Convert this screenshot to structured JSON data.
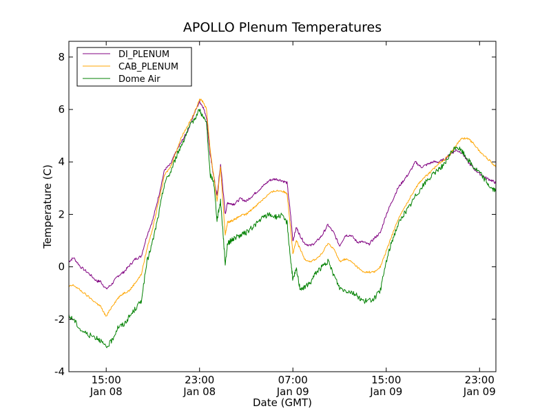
{
  "chart_data": {
    "type": "line",
    "title": "APOLLO Plenum Temperatures",
    "xlabel": "Date (GMT)",
    "ylabel": "Temperature (C)",
    "xunit": "hours since Jan 08 00:00 GMT",
    "xlim": [
      11.8,
      48.4
    ],
    "ylim": [
      -4,
      8.6
    ],
    "grid": false,
    "legend_position": "top-left",
    "yticks": [
      -4,
      -2,
      0,
      2,
      4,
      6,
      8
    ],
    "xticks": [
      {
        "value": 15,
        "time": "15:00",
        "date": "Jan 08"
      },
      {
        "value": 23,
        "time": "23:00",
        "date": "Jan 08"
      },
      {
        "value": 31,
        "time": "07:00",
        "date": "Jan 09"
      },
      {
        "value": 39,
        "time": "15:00",
        "date": "Jan 09"
      },
      {
        "value": 47,
        "time": "23:00",
        "date": "Jan 09"
      }
    ],
    "series": [
      {
        "name": "DI_PLENUM",
        "color": "#800080",
        "x": [
          11.8,
          12.2,
          12.8,
          13.5,
          14.2,
          14.5,
          15.0,
          15.5,
          16.0,
          16.5,
          17.0,
          17.5,
          18.0,
          18.5,
          19.0,
          19.5,
          20.0,
          20.5,
          21.0,
          21.5,
          22.0,
          22.5,
          23.0,
          23.3,
          23.6,
          23.9,
          24.2,
          24.5,
          24.8,
          25.0,
          25.2,
          25.4,
          25.7,
          26.0,
          26.5,
          27.0,
          27.5,
          28.0,
          28.5,
          29.0,
          29.5,
          30.0,
          30.5,
          30.8,
          31.0,
          31.3,
          31.6,
          32.0,
          32.5,
          33.0,
          33.5,
          34.0,
          34.5,
          35.0,
          35.5,
          36.0,
          36.5,
          37.0,
          37.5,
          38.0,
          38.5,
          39.0,
          39.5,
          40.0,
          40.5,
          41.0,
          41.5,
          42.0,
          42.5,
          43.0,
          43.5,
          44.0,
          44.5,
          45.0,
          45.5,
          46.0,
          46.5,
          47.0,
          47.5,
          48.0,
          48.4
        ],
        "y": [
          0.2,
          0.35,
          0.0,
          -0.25,
          -0.55,
          -0.55,
          -0.85,
          -0.65,
          -0.35,
          -0.2,
          0.05,
          0.3,
          0.4,
          1.2,
          1.8,
          2.7,
          3.7,
          3.9,
          4.4,
          4.8,
          5.2,
          5.8,
          6.3,
          6.1,
          5.7,
          4.3,
          3.5,
          2.7,
          3.9,
          3.0,
          2.0,
          2.45,
          2.4,
          2.4,
          2.6,
          2.5,
          2.7,
          2.9,
          3.1,
          3.3,
          3.35,
          3.3,
          3.2,
          2.0,
          1.0,
          1.5,
          1.2,
          0.9,
          0.8,
          0.95,
          1.2,
          1.6,
          1.3,
          0.8,
          1.2,
          1.2,
          0.95,
          0.95,
          0.85,
          1.1,
          1.3,
          2.0,
          2.5,
          3.0,
          3.3,
          3.6,
          4.0,
          3.8,
          3.9,
          4.0,
          4.0,
          4.1,
          4.3,
          4.45,
          4.35,
          4.0,
          3.75,
          3.55,
          3.4,
          3.3,
          3.2
        ]
      },
      {
        "name": "CAB_PLENUM",
        "color": "#ffa500",
        "x": [
          11.8,
          12.2,
          12.8,
          13.5,
          14.2,
          14.5,
          15.0,
          15.5,
          16.0,
          16.5,
          17.0,
          17.5,
          18.0,
          18.5,
          19.0,
          19.5,
          20.0,
          20.5,
          21.0,
          21.5,
          22.0,
          22.5,
          23.0,
          23.3,
          23.6,
          23.9,
          24.2,
          24.5,
          24.8,
          25.0,
          25.2,
          25.4,
          25.7,
          26.0,
          26.5,
          27.0,
          27.5,
          28.0,
          28.5,
          29.0,
          29.5,
          30.0,
          30.5,
          30.8,
          31.0,
          31.3,
          31.6,
          32.0,
          32.5,
          33.0,
          33.5,
          34.0,
          34.5,
          35.0,
          35.5,
          36.0,
          36.5,
          37.0,
          37.5,
          38.0,
          38.5,
          39.0,
          39.5,
          40.0,
          40.5,
          41.0,
          41.5,
          42.0,
          42.5,
          43.0,
          43.5,
          44.0,
          44.5,
          45.0,
          45.5,
          46.0,
          46.5,
          47.0,
          47.5,
          48.0,
          48.4
        ],
        "y": [
          -0.75,
          -0.7,
          -0.9,
          -1.15,
          -1.4,
          -1.5,
          -1.9,
          -1.5,
          -1.2,
          -1.0,
          -0.9,
          -0.6,
          -0.3,
          0.7,
          1.5,
          2.5,
          3.5,
          3.8,
          4.4,
          5.0,
          5.4,
          5.8,
          6.4,
          6.3,
          6.0,
          4.5,
          3.5,
          2.5,
          3.8,
          2.5,
          1.2,
          1.7,
          1.75,
          1.8,
          1.95,
          2.0,
          2.2,
          2.4,
          2.6,
          2.8,
          2.9,
          2.9,
          2.8,
          1.5,
          0.5,
          1.0,
          0.7,
          0.3,
          0.2,
          0.3,
          0.5,
          0.9,
          0.7,
          0.2,
          0.3,
          0.2,
          0.0,
          -0.2,
          -0.2,
          -0.2,
          0.0,
          0.6,
          1.2,
          1.8,
          2.2,
          2.6,
          3.0,
          3.3,
          3.5,
          3.7,
          3.95,
          4.1,
          4.3,
          4.65,
          4.9,
          4.9,
          4.7,
          4.4,
          4.2,
          4.0,
          3.8
        ]
      },
      {
        "name": "Dome Air",
        "color": "#008000",
        "x": [
          11.8,
          12.2,
          12.8,
          13.5,
          14.2,
          14.5,
          15.0,
          15.5,
          16.0,
          16.5,
          17.0,
          17.5,
          18.0,
          18.5,
          19.0,
          19.5,
          20.0,
          20.5,
          21.0,
          21.5,
          22.0,
          22.5,
          23.0,
          23.3,
          23.6,
          23.9,
          24.2,
          24.5,
          24.8,
          25.0,
          25.2,
          25.4,
          25.7,
          26.0,
          26.5,
          27.0,
          27.5,
          28.0,
          28.5,
          29.0,
          29.5,
          30.0,
          30.5,
          30.8,
          31.0,
          31.3,
          31.6,
          32.0,
          32.5,
          33.0,
          33.5,
          34.0,
          34.5,
          35.0,
          35.5,
          36.0,
          36.5,
          37.0,
          37.5,
          38.0,
          38.5,
          39.0,
          39.5,
          40.0,
          40.5,
          41.0,
          41.5,
          42.0,
          42.5,
          43.0,
          43.5,
          44.0,
          44.5,
          45.0,
          45.5,
          46.0,
          46.5,
          47.0,
          47.5,
          48.0,
          48.4
        ],
        "y": [
          -1.9,
          -2.0,
          -2.4,
          -2.6,
          -2.7,
          -2.8,
          -3.1,
          -2.8,
          -2.3,
          -2.2,
          -1.9,
          -1.6,
          -1.3,
          0.2,
          1.0,
          2.0,
          3.2,
          3.6,
          4.2,
          4.7,
          5.2,
          5.6,
          6.0,
          5.7,
          5.5,
          3.5,
          3.3,
          1.8,
          2.5,
          1.4,
          0.1,
          0.9,
          1.0,
          1.1,
          1.2,
          1.3,
          1.5,
          1.7,
          1.9,
          2.0,
          1.9,
          1.95,
          1.7,
          0.3,
          -0.5,
          -0.1,
          -0.8,
          -0.8,
          -0.6,
          -0.2,
          0.0,
          0.2,
          -0.3,
          -0.8,
          -0.9,
          -0.95,
          -1.1,
          -1.3,
          -1.3,
          -1.2,
          -0.9,
          0.2,
          1.0,
          1.6,
          2.0,
          2.3,
          2.7,
          3.0,
          3.3,
          3.5,
          3.75,
          3.9,
          4.3,
          4.6,
          4.4,
          4.1,
          3.8,
          3.6,
          3.3,
          3.0,
          2.9
        ]
      }
    ]
  }
}
